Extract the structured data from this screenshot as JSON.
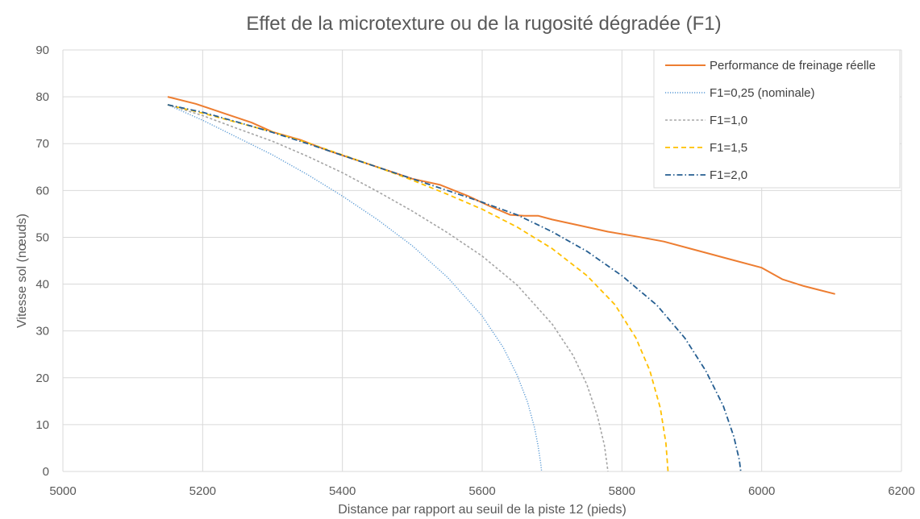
{
  "chart_data": {
    "type": "line",
    "title": "Effet de la microtexture ou de la rugosité dégradée (F1)",
    "xlabel": "Distance par rapport au seuil de la piste 12 (pieds)",
    "ylabel": "Vitesse sol (nœuds)",
    "xlim": [
      5000,
      6200
    ],
    "ylim": [
      0,
      90
    ],
    "xticks": [
      "5000",
      "5200",
      "5400",
      "5600",
      "5800",
      "6000",
      "6200"
    ],
    "yticks": [
      "0",
      "10",
      "20",
      "30",
      "40",
      "50",
      "60",
      "70",
      "80",
      "90"
    ],
    "grid": true,
    "legend_position": "top-right",
    "series": [
      {
        "name": "Performance de freinage réelle",
        "color": "#ED7D31",
        "dash": "solid",
        "x": [
          5150,
          5190,
          5230,
          5270,
          5300,
          5340,
          5380,
          5420,
          5460,
          5500,
          5540,
          5580,
          5610,
          5640,
          5660,
          5680,
          5700,
          5740,
          5780,
          5820,
          5860,
          5900,
          5950,
          6000,
          6030,
          6060,
          6105
        ],
        "y": [
          80,
          78.5,
          76.5,
          74.5,
          72.5,
          70.8,
          68.5,
          66.5,
          64.5,
          62.5,
          61.2,
          58.8,
          56.7,
          54.8,
          54.6,
          54.6,
          53.8,
          52.5,
          51.2,
          50.2,
          49.1,
          47.5,
          45.5,
          43.5,
          41,
          39.6,
          37.9
        ]
      },
      {
        "name": "F1=0,25 (nominale)",
        "color": "#5B9BD5",
        "dash": "dotted",
        "x": [
          5150,
          5200,
          5250,
          5300,
          5350,
          5400,
          5450,
          5500,
          5550,
          5600,
          5630,
          5650,
          5665,
          5675,
          5680,
          5684,
          5685
        ],
        "y": [
          78.3,
          75,
          71.3,
          67.6,
          63.4,
          58.8,
          53.8,
          48.2,
          41.5,
          33.2,
          26.5,
          20.6,
          14.8,
          9.3,
          5.5,
          1.5,
          0
        ]
      },
      {
        "name": "F1=1,0",
        "color": "#A5A5A5",
        "dash": "short-dash",
        "x": [
          5150,
          5200,
          5250,
          5300,
          5350,
          5400,
          5450,
          5500,
          5550,
          5600,
          5650,
          5700,
          5730,
          5750,
          5765,
          5775,
          5780
        ],
        "y": [
          78.3,
          76,
          73.2,
          70.5,
          67.3,
          63.8,
          59.8,
          55.6,
          51,
          46,
          39.8,
          31.5,
          24.8,
          18.5,
          11.8,
          5.5,
          0
        ]
      },
      {
        "name": "F1=1,5",
        "color": "#FFC000",
        "dash": "dash",
        "x": [
          5150,
          5200,
          5250,
          5300,
          5350,
          5400,
          5450,
          5500,
          5550,
          5600,
          5650,
          5700,
          5750,
          5790,
          5820,
          5840,
          5855,
          5863,
          5866
        ],
        "y": [
          78.3,
          76.5,
          74.5,
          72.5,
          70.2,
          67.6,
          65,
          62.2,
          59.2,
          56,
          52.2,
          47.6,
          41.8,
          35.6,
          28.5,
          21.5,
          13.5,
          6,
          0
        ]
      },
      {
        "name": "F1=2,0",
        "color": "#255E91",
        "dash": "dash-dot",
        "x": [
          5150,
          5200,
          5250,
          5300,
          5350,
          5400,
          5450,
          5500,
          5550,
          5600,
          5650,
          5700,
          5750,
          5800,
          5850,
          5890,
          5920,
          5945,
          5960,
          5968,
          5970
        ],
        "y": [
          78.3,
          76.7,
          74.6,
          72.4,
          70,
          67.5,
          65,
          62.5,
          60,
          57.5,
          54.8,
          51.2,
          47,
          41.8,
          35.5,
          28.5,
          21.5,
          14,
          7.5,
          2.5,
          0
        ]
      }
    ]
  }
}
